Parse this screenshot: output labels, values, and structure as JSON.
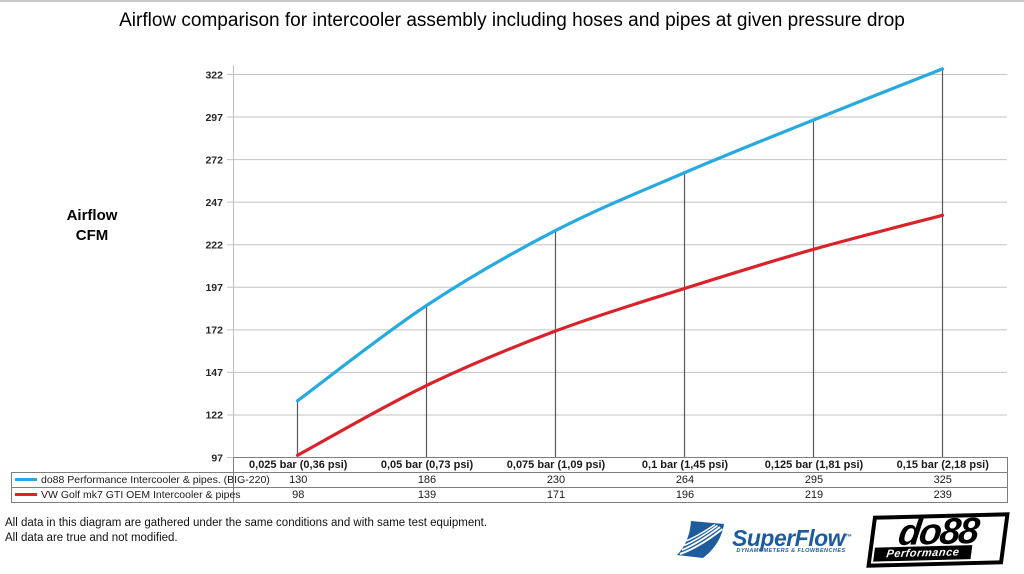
{
  "chart_data": {
    "type": "line",
    "title": "Airflow comparison for intercooler assembly including hoses and pipes at given pressure drop",
    "ylabel": "Airflow CFM",
    "ylabel_lines": [
      "Airflow",
      "CFM"
    ],
    "categories": [
      "0,025 bar (0,36 psi)",
      "0,05 bar (0,73 psi)",
      "0,075 bar (1,09 psi)",
      "0,1 bar (1,45 psi)",
      "0,125 bar (1,81 psi)",
      "0,15 bar (2,18 psi)"
    ],
    "series": [
      {
        "name": "do88 Performance Intercooler & pipes. (BIG-220)",
        "color": "#27a9e1",
        "values": [
          130,
          186,
          230,
          264,
          295,
          325
        ]
      },
      {
        "name": "VW Golf mk7 GTI OEM Intercooler & pipes",
        "color": "#d9222a",
        "values": [
          98,
          139,
          171,
          196,
          219,
          239
        ]
      }
    ],
    "y_ticks": [
      97,
      122,
      147,
      172,
      197,
      222,
      247,
      272,
      297,
      322
    ],
    "ylim": [
      97,
      322
    ],
    "grid": true,
    "grid_color": "#c3c3c3",
    "axis_color": "#bfbfbf",
    "point_marker_lines": true,
    "marker_line_color": "#595959",
    "legend_position": "bottom-table"
  },
  "footer": {
    "line1": "All data in this diagram are gathered under the same conditions and with same test equipment.",
    "line2": "All data are true and not modified."
  },
  "logos": {
    "superflow": {
      "name": "SuperFlow",
      "trademark": "™",
      "tagline": "DYNAMOMETERS & FLOWBENCHES",
      "color": "#1e5c9e"
    },
    "do88": {
      "name": "do88",
      "tagline": "Performance",
      "color": "#000000"
    }
  }
}
